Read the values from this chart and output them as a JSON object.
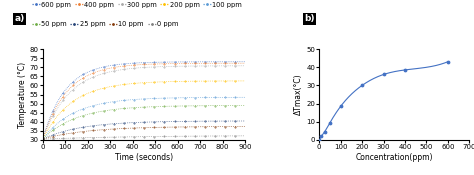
{
  "panel_a": {
    "title": "a)",
    "xlabel": "Time (seconds)",
    "ylabel": "Temperature (°C)",
    "xlim": [
      0,
      900
    ],
    "ylim": [
      30,
      80
    ],
    "yticks": [
      30,
      35,
      40,
      45,
      50,
      55,
      60,
      65,
      70,
      75,
      80
    ],
    "xticks": [
      0,
      100,
      200,
      300,
      400,
      500,
      600,
      700,
      800,
      900
    ],
    "series": [
      {
        "label": "600 ppm",
        "color": "#4472C4",
        "t0": 30.5,
        "tmax": 73.0,
        "tau": 100
      },
      {
        "label": "400 ppm",
        "color": "#ED7D31",
        "t0": 30.5,
        "tmax": 72.2,
        "tau": 110
      },
      {
        "label": "300 ppm",
        "color": "#A9A9A9",
        "t0": 30.5,
        "tmax": 70.8,
        "tau": 120
      },
      {
        "label": "200 ppm",
        "color": "#FFC000",
        "t0": 30.5,
        "tmax": 62.5,
        "tau": 130
      },
      {
        "label": "100 ppm",
        "color": "#5B9BD5",
        "t0": 30.5,
        "tmax": 53.5,
        "tau": 140
      },
      {
        "label": "50 ppm",
        "color": "#70AD47",
        "t0": 30.5,
        "tmax": 49.0,
        "tau": 150
      },
      {
        "label": "25 ppm",
        "color": "#264478",
        "t0": 30.5,
        "tmax": 40.5,
        "tau": 170
      },
      {
        "label": "10 ppm",
        "color": "#843C0C",
        "t0": 30.5,
        "tmax": 37.5,
        "tau": 200
      },
      {
        "label": "0 ppm",
        "color": "#808080",
        "t0": 30.5,
        "tmax": 32.5,
        "tau": 400
      }
    ],
    "legend_row1_labels": [
      "600 ppm",
      "400 ppm",
      "300 ppm",
      "200 ppm",
      "100 ppm"
    ],
    "legend_row1_colors": [
      "#4472C4",
      "#ED7D31",
      "#A9A9A9",
      "#FFC000",
      "#5B9BD5"
    ],
    "legend_row2_labels": [
      "50 ppm",
      "25 ppm",
      "10 ppm",
      "0 ppm"
    ],
    "legend_row2_colors": [
      "#70AD47",
      "#264478",
      "#843C0C",
      "#808080"
    ]
  },
  "panel_b": {
    "xlabel": "Concentration(ppm)",
    "ylabel": "ΔTmax(°C)",
    "xlim": [
      0,
      700
    ],
    "ylim": [
      0,
      50
    ],
    "yticks": [
      0,
      10,
      20,
      30,
      40,
      50
    ],
    "xticks": [
      0,
      100,
      200,
      300,
      400,
      500,
      600,
      700
    ],
    "data_x": [
      0,
      10,
      25,
      50,
      100,
      200,
      300,
      400,
      600
    ],
    "data_y": [
      0,
      2.0,
      4.5,
      9.5,
      18.5,
      30.0,
      36.0,
      38.5,
      43.0
    ],
    "color": "#4472C4"
  },
  "background_color": "#FFFFFF",
  "label_fontsize": 5.5,
  "tick_fontsize": 5.0,
  "legend_fontsize": 4.8
}
